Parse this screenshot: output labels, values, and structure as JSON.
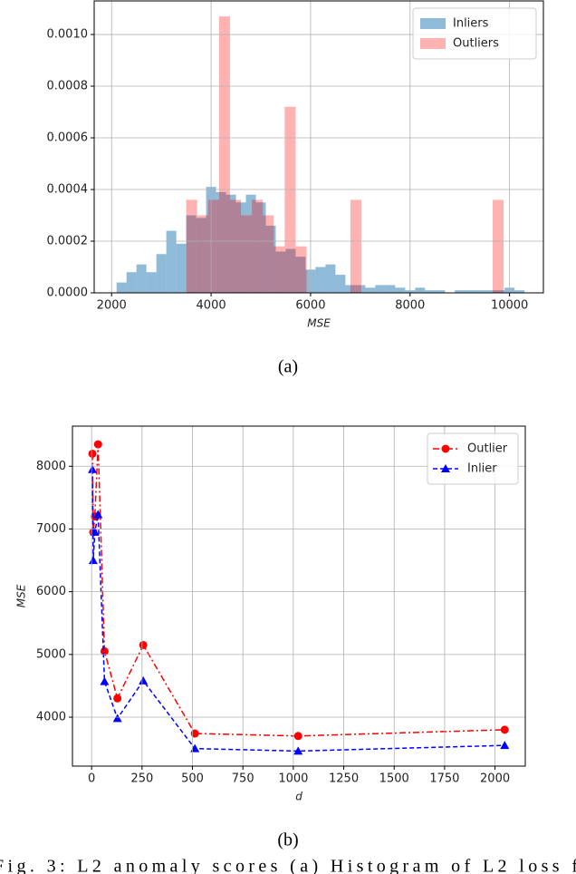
{
  "chart_data": [
    {
      "type": "histogram",
      "xlabel": "MSE",
      "xlim": [
        1650,
        10680
      ],
      "xticks": [
        2000,
        4000,
        6000,
        8000,
        10000
      ],
      "ylim": [
        0,
        0.00113
      ],
      "yticks": [
        {
          "value": 0,
          "label": "0.0000"
        },
        {
          "value": 0.0002,
          "label": "0.0002"
        },
        {
          "value": 0.0004,
          "label": "0.0004"
        },
        {
          "value": 0.0006,
          "label": "0.0006"
        },
        {
          "value": 0.0008,
          "label": "0.0008"
        },
        {
          "value": 0.001,
          "label": "0.0010"
        }
      ],
      "grid": true,
      "legend": "upper right",
      "series": [
        {
          "name": "Inliers",
          "color": "#1f77b4",
          "bins": [
            2100,
            2300,
            2500,
            2700,
            2900,
            3100,
            3300,
            3500,
            3700,
            3900,
            4100,
            4300,
            4500,
            4700,
            4900,
            5100,
            5300,
            5500,
            5700,
            5900,
            6100,
            6300,
            6500,
            6700,
            6900,
            7100,
            7300,
            7500,
            7700,
            7900,
            8100,
            8300,
            8500,
            8700,
            8900,
            9100,
            9300,
            9500,
            9700,
            9900,
            10100,
            10300
          ],
          "values": [
            4e-05,
            8e-05,
            0.00011,
            8e-05,
            0.00015,
            0.00024,
            0.00019,
            0.0003,
            0.00029,
            0.00041,
            0.00039,
            0.00038,
            0.00035,
            0.00038,
            0.00035,
            0.00026,
            0.00016,
            0.00017,
            0.00014,
            9e-05,
            0.0001,
            0.00011,
            7e-05,
            3e-05,
            3e-05,
            2e-05,
            3e-05,
            3e-05,
            2e-05,
            1e-05,
            2e-05,
            1e-05,
            1e-05,
            0,
            1e-05,
            1e-05,
            1e-05,
            1e-05,
            1e-05,
            2e-05,
            1e-05
          ]
        },
        {
          "name": "Outliers",
          "color": "#ff0000",
          "bins": [
            3500,
            3720,
            3940,
            4160,
            4380,
            4600,
            4820,
            5040,
            5260,
            5480,
            5700,
            5920,
            6140,
            6360,
            6580,
            6800,
            7020,
            7240,
            7460,
            7680,
            7900,
            8120,
            8340,
            8560,
            8780,
            9000,
            9220,
            9440,
            9660,
            9880
          ],
          "values": [
            0.00036,
            0.0003,
            0.00036,
            0.00107,
            0.00036,
            0.0003,
            0.00036,
            0.0003,
            0.00018,
            0.00072,
            0.00018,
            0,
            0,
            0,
            0,
            0.00036,
            0,
            0,
            0,
            0,
            0,
            0,
            0,
            0,
            0,
            0,
            0,
            0,
            0.00036
          ]
        }
      ]
    },
    {
      "type": "line",
      "xlabel": "d",
      "ylabel": "MSE",
      "x": [
        4,
        8,
        16,
        32,
        64,
        128,
        256,
        512,
        1024,
        2048
      ],
      "xlim": [
        -95,
        2150
      ],
      "xticks": [
        0,
        250,
        500,
        750,
        1000,
        1250,
        1500,
        1750,
        2000
      ],
      "ylim": [
        3220,
        8640
      ],
      "yticks": [
        4000,
        5000,
        6000,
        7000,
        8000
      ],
      "grid": true,
      "legend": "upper right",
      "series": [
        {
          "name": "Outlier",
          "color": "#ff0000",
          "marker": "circle",
          "linestyle": "dashdot",
          "values": [
            8200,
            6950,
            7200,
            8350,
            5050,
            4300,
            5150,
            3740,
            3700,
            3800
          ]
        },
        {
          "name": "Inlier",
          "color": "#0000ff",
          "marker": "triangle",
          "linestyle": "dashed",
          "values": [
            7950,
            6500,
            6950,
            7230,
            4570,
            3980,
            4580,
            3500,
            3460,
            3550
          ]
        }
      ]
    }
  ],
  "figure": {
    "panel_labels": [
      "(a)",
      "(b)"
    ],
    "caption": "Fig. 3: L2 anomaly scores (a) Histogram of L2 loss f"
  }
}
